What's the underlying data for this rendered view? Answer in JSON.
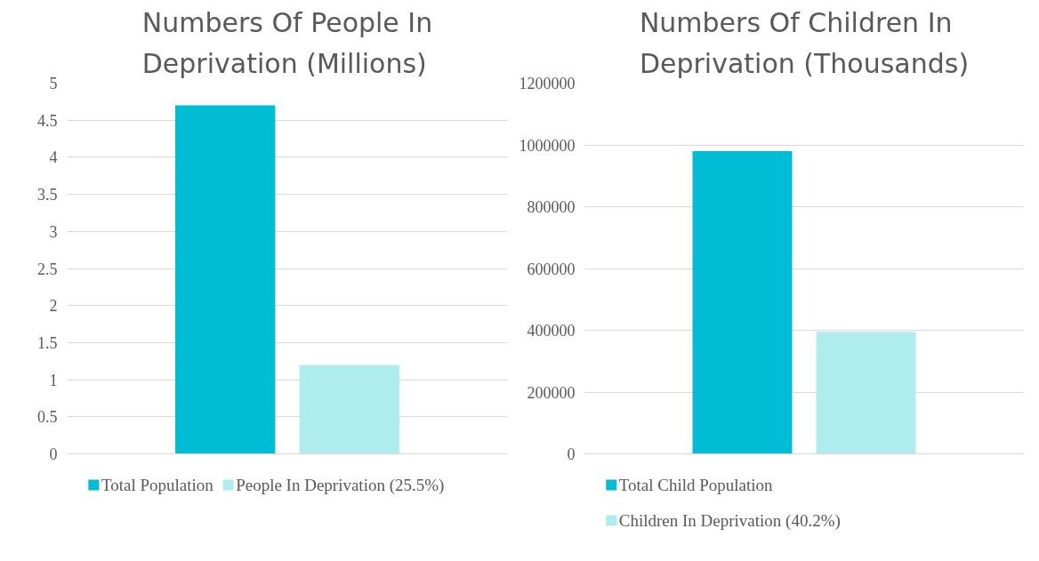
{
  "chart_data": [
    {
      "type": "bar",
      "title": "Numbers Of People In Deprivation (Millions)",
      "categories": [
        null
      ],
      "series": [
        {
          "name": "Total Population",
          "color": "#00bcd4",
          "values": [
            4.7
          ]
        },
        {
          "name": "People In Deprivation (25.5%)",
          "color": "#aeecee",
          "values": [
            1.2
          ]
        }
      ],
      "ylim": [
        0,
        5
      ],
      "yticks": [
        0,
        0.5,
        1,
        1.5,
        2,
        2.5,
        3,
        3.5,
        4,
        4.5,
        5
      ],
      "grid": "y",
      "legend": "bottom"
    },
    {
      "type": "bar",
      "title": "Numbers Of Children In Deprivation (Thousands)",
      "categories": [
        null
      ],
      "series": [
        {
          "name": "Total Child Population",
          "color": "#00bcd4",
          "values": [
            980000
          ]
        },
        {
          "name": "Children In Deprivation (40.2%)",
          "color": "#aeecee",
          "values": [
            395000
          ]
        }
      ],
      "ylim": [
        0,
        1200000
      ],
      "yticks": [
        0,
        200000,
        400000,
        600000,
        800000,
        1000000,
        1200000
      ],
      "grid": "y",
      "legend": "bottom"
    }
  ]
}
